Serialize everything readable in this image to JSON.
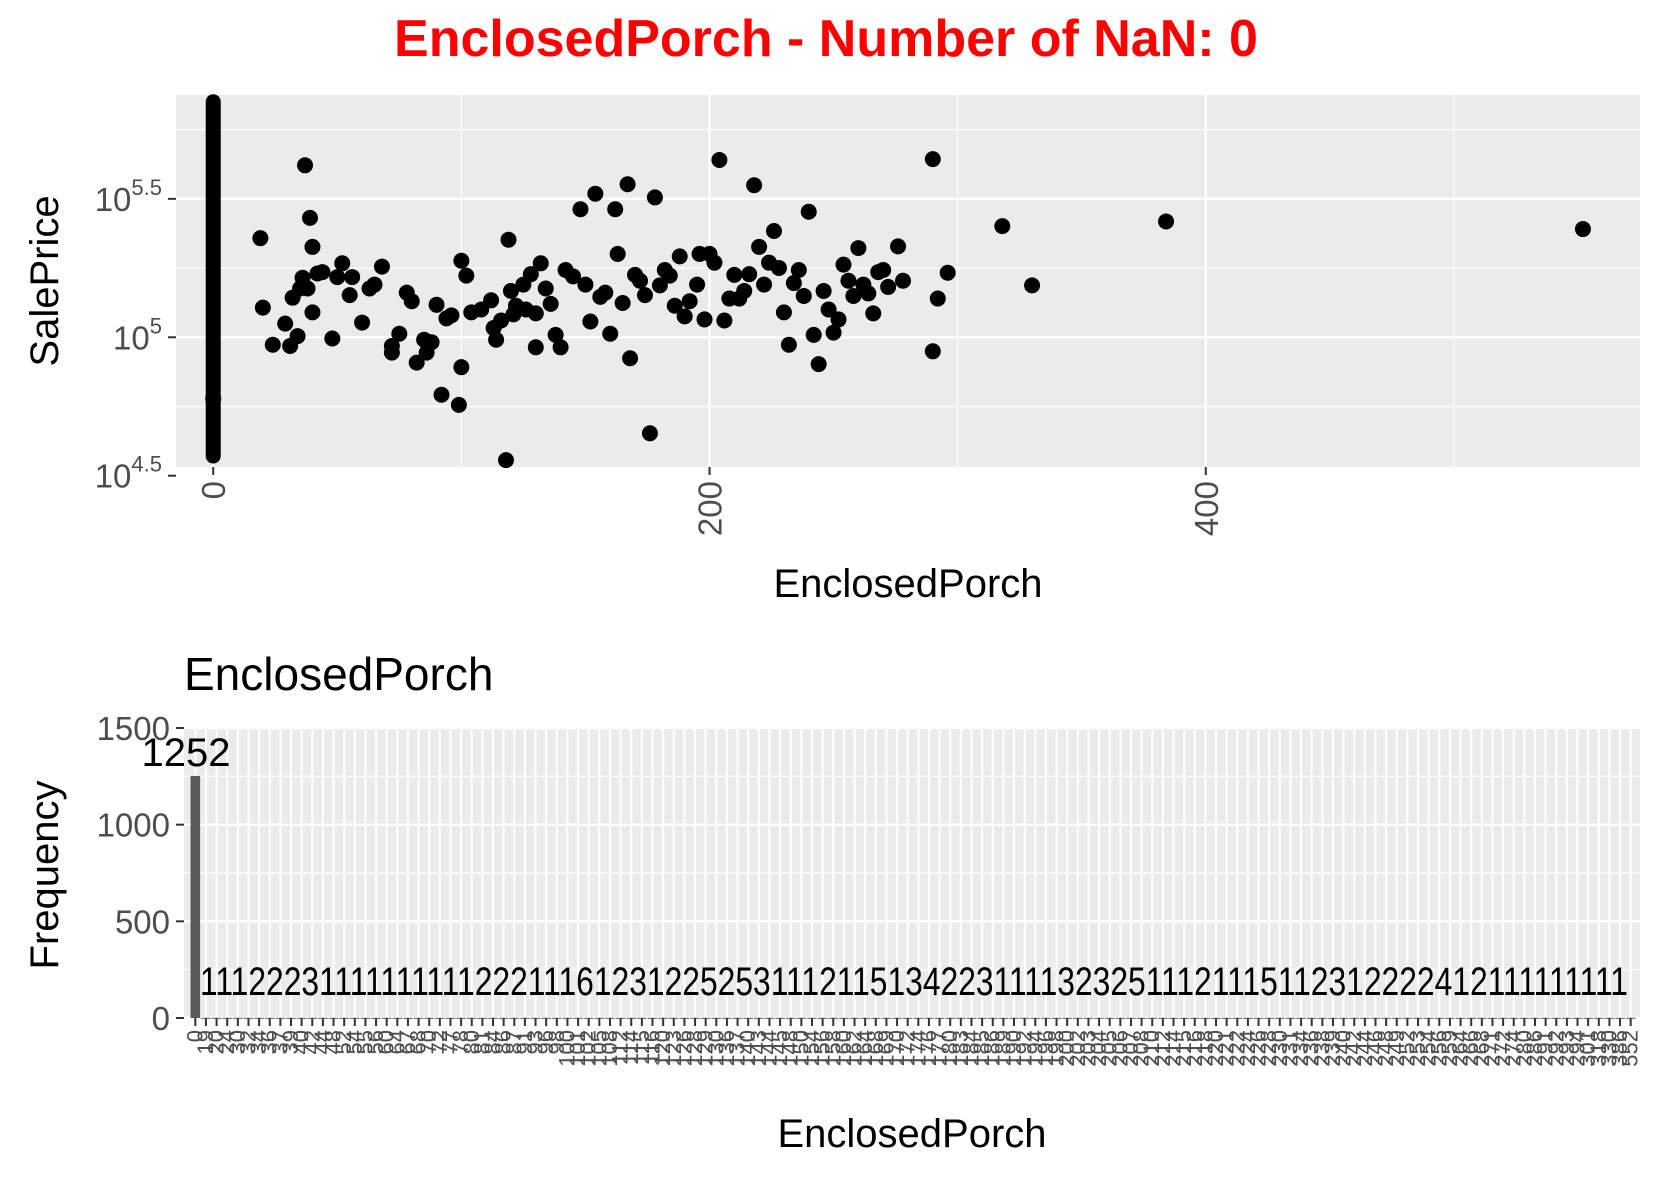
{
  "title": "EnclosedPorch - Number of NaN: 0",
  "chart_data": [
    {
      "type": "scatter",
      "xlabel": "EnclosedPorch",
      "ylabel": "SalePrice",
      "y_scale": "log10",
      "xlim": [
        -15,
        575
      ],
      "ylim": [
        34000,
        750000
      ],
      "x_ticks": [
        "0",
        "200",
        "400"
      ],
      "x_tick_values": [
        0,
        200,
        400
      ],
      "y_ticks": [
        {
          "base": "10",
          "exp": "4.5",
          "value": 31623
        },
        {
          "base": "10",
          "exp": "5",
          "value": 100000
        },
        {
          "base": "10",
          "exp": "5.5",
          "value": 316228
        }
      ],
      "grid": true,
      "point_color": "#000000",
      "zero_column": {
        "x": 0,
        "y_min": 35000,
        "y_max": 755000
      },
      "points": [
        [
          19,
          228000
        ],
        [
          20,
          128000
        ],
        [
          24,
          94000
        ],
        [
          29,
          112000
        ],
        [
          31,
          93000
        ],
        [
          32,
          139000
        ],
        [
          34,
          101000
        ],
        [
          35,
          150000
        ],
        [
          36,
          164000
        ],
        [
          37,
          418000
        ],
        [
          38,
          150000
        ],
        [
          39,
          270000
        ],
        [
          40,
          123000
        ],
        [
          40,
          212000
        ],
        [
          42,
          170000
        ],
        [
          44,
          172000
        ],
        [
          48,
          99000
        ],
        [
          50,
          165000
        ],
        [
          52,
          185000
        ],
        [
          55,
          142000
        ],
        [
          56,
          165000
        ],
        [
          60,
          113000
        ],
        [
          63,
          150000
        ],
        [
          65,
          155000
        ],
        [
          68,
          180000
        ],
        [
          72,
          93000
        ],
        [
          72,
          88000
        ],
        [
          75,
          103000
        ],
        [
          78,
          145000
        ],
        [
          80,
          135000
        ],
        [
          82,
          81000
        ],
        [
          85,
          98000
        ],
        [
          86,
          88000
        ],
        [
          88,
          96000
        ],
        [
          90,
          131000
        ],
        [
          92,
          62000
        ],
        [
          94,
          117000
        ],
        [
          96,
          120000
        ],
        [
          99,
          57000
        ],
        [
          100,
          189000
        ],
        [
          100,
          78000
        ],
        [
          102,
          167000
        ],
        [
          104,
          123000
        ],
        [
          108,
          126000
        ],
        [
          112,
          136000
        ],
        [
          113,
          108000
        ],
        [
          114,
          98000
        ],
        [
          116,
          115000
        ],
        [
          118,
          36000
        ],
        [
          119,
          225000
        ],
        [
          120,
          147000
        ],
        [
          121,
          121000
        ],
        [
          122,
          130000
        ],
        [
          125,
          155000
        ],
        [
          126,
          126000
        ],
        [
          128,
          169000
        ],
        [
          130,
          122000
        ],
        [
          130,
          92000
        ],
        [
          132,
          185000
        ],
        [
          134,
          150000
        ],
        [
          136,
          132000
        ],
        [
          138,
          102000
        ],
        [
          140,
          92000
        ],
        [
          142,
          175000
        ],
        [
          145,
          166000
        ],
        [
          148,
          290000
        ],
        [
          150,
          155000
        ],
        [
          152,
          114000
        ],
        [
          154,
          330000
        ],
        [
          156,
          140000
        ],
        [
          158,
          145000
        ],
        [
          160,
          103000
        ],
        [
          162,
          290000
        ],
        [
          163,
          200000
        ],
        [
          165,
          133000
        ],
        [
          167,
          357000
        ],
        [
          168,
          84000
        ],
        [
          170,
          168000
        ],
        [
          172,
          160000
        ],
        [
          174,
          142000
        ],
        [
          176,
          45000
        ],
        [
          178,
          320000
        ],
        [
          180,
          154000
        ],
        [
          182,
          175000
        ],
        [
          184,
          167000
        ],
        [
          186,
          130000
        ],
        [
          188,
          196000
        ],
        [
          190,
          119000
        ],
        [
          192,
          135000
        ],
        [
          195,
          155000
        ],
        [
          196,
          200000
        ],
        [
          198,
          116000
        ],
        [
          200,
          200000
        ],
        [
          202,
          186000
        ],
        [
          204,
          437000
        ],
        [
          206,
          115000
        ],
        [
          208,
          138000
        ],
        [
          210,
          168000
        ],
        [
          212,
          138000
        ],
        [
          214,
          147000
        ],
        [
          216,
          169000
        ],
        [
          218,
          354000
        ],
        [
          220,
          212000
        ],
        [
          222,
          155000
        ],
        [
          224,
          186000
        ],
        [
          226,
          242000
        ],
        [
          228,
          178000
        ],
        [
          230,
          123000
        ],
        [
          232,
          94000
        ],
        [
          234,
          157000
        ],
        [
          236,
          175000
        ],
        [
          238,
          141000
        ],
        [
          240,
          284000
        ],
        [
          242,
          102000
        ],
        [
          244,
          80000
        ],
        [
          246,
          147000
        ],
        [
          248,
          126000
        ],
        [
          250,
          104000
        ],
        [
          252,
          116000
        ],
        [
          254,
          183000
        ],
        [
          256,
          160000
        ],
        [
          258,
          141000
        ],
        [
          260,
          210000
        ],
        [
          262,
          155000
        ],
        [
          264,
          144000
        ],
        [
          266,
          122000
        ],
        [
          268,
          172000
        ],
        [
          270,
          175000
        ],
        [
          272,
          152000
        ],
        [
          276,
          213000
        ],
        [
          278,
          160000
        ],
        [
          290,
          89000
        ],
        [
          290,
          440000
        ],
        [
          292,
          138000
        ],
        [
          296,
          171000
        ],
        [
          318,
          252000
        ],
        [
          330,
          154000
        ],
        [
          384,
          262000
        ],
        [
          552,
          246000
        ],
        [
          0,
          60000
        ]
      ]
    },
    {
      "type": "bar",
      "title": "EnclosedPorch",
      "xlabel": "EnclosedPorch",
      "ylabel": "Frequency",
      "ylim": [
        0,
        1500
      ],
      "y_ticks": [
        0,
        500,
        1000,
        1500
      ],
      "bar_color": "#595959",
      "first_bar": {
        "category": "0",
        "value": 1252
      },
      "first_label": "1252",
      "category_labels": [
        "0",
        "19",
        "20",
        "24",
        "30",
        "32",
        "34",
        "36",
        "37",
        "39",
        "40",
        "42",
        "44",
        "48",
        "52",
        "54",
        "55",
        "56",
        "60",
        "64",
        "67",
        "68",
        "70",
        "72",
        "77",
        "78",
        "80",
        "81",
        "84",
        "86",
        "87",
        "91",
        "93",
        "96",
        "98",
        "100",
        "101",
        "102",
        "105",
        "108",
        "112",
        "114",
        "115",
        "116",
        "120",
        "123",
        "126",
        "128",
        "129",
        "130",
        "136",
        "137",
        "140",
        "143",
        "144",
        "145",
        "148",
        "150",
        "154",
        "156",
        "158",
        "160",
        "162",
        "164",
        "168",
        "169",
        "170",
        "172",
        "174",
        "176",
        "177",
        "180",
        "183",
        "184",
        "185",
        "186",
        "189",
        "190",
        "192",
        "194",
        "196",
        "198",
        "200",
        "202",
        "203",
        "204",
        "205",
        "206",
        "207",
        "208",
        "210",
        "212",
        "214",
        "215",
        "216",
        "218",
        "220",
        "221",
        "222",
        "224",
        "226",
        "228",
        "230",
        "231",
        "234",
        "236",
        "238",
        "239",
        "240",
        "242",
        "244",
        "246",
        "248",
        "249",
        "252",
        "253",
        "254",
        "256",
        "259",
        "264",
        "266",
        "268",
        "271",
        "272",
        "274",
        "280",
        "286",
        "291",
        "292",
        "293",
        "294",
        "301",
        "318",
        "330",
        "386",
        "552"
      ],
      "counts_text": "1112223111111111122211161231225253111211513422311113232511121115112312222412111111111",
      "other_values_typical": 1
    }
  ]
}
